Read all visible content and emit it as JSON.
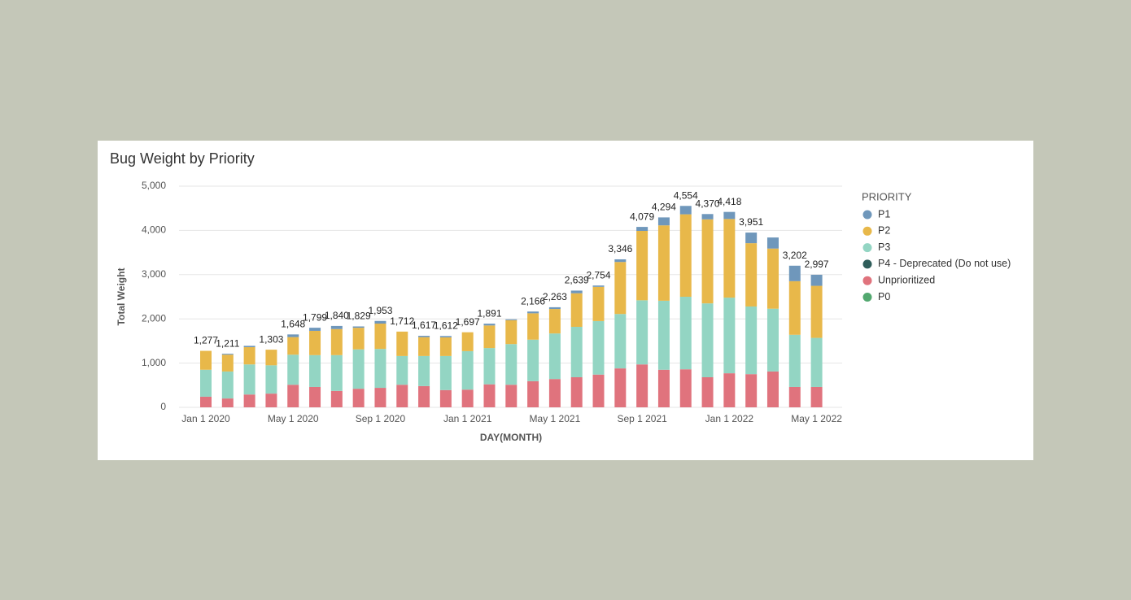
{
  "chart_data": {
    "type": "stacked_bar",
    "title": "Bug Weight by Priority",
    "y_label": "Total Weight",
    "x_label": "DAY(MONTH)",
    "legend_title": "PRIORITY",
    "legend_position": "right",
    "grid": true,
    "categories": [
      "Jan 1 2020",
      null,
      null,
      null,
      "May 1 2020",
      null,
      null,
      null,
      "Sep 1 2020",
      null,
      null,
      null,
      "Jan 1 2021",
      null,
      null,
      null,
      "May 1 2021",
      null,
      null,
      null,
      "Sep 1 2021",
      null,
      null,
      null,
      "Jan 1 2022",
      null,
      null,
      null,
      "May 1 2022"
    ],
    "ylim": [
      0,
      5000
    ],
    "yticks": [
      0,
      {
        "value": 1000,
        "label": "1,000"
      },
      {
        "value": 2000,
        "label": "2,000"
      },
      {
        "value": 3000,
        "label": "3,000"
      },
      {
        "value": 4000,
        "label": "4,000"
      },
      {
        "value": 5000,
        "label": "5,000"
      }
    ],
    "series": [
      {
        "name": "P1",
        "color": "#6f97bb",
        "values": [
          0,
          20,
          30,
          0,
          60,
          70,
          70,
          30,
          60,
          0,
          30,
          30,
          0,
          40,
          20,
          40,
          40,
          60,
          30,
          60,
          90,
          180,
          190,
          120,
          160,
          240,
          250,
          350,
          250
        ]
      },
      {
        "name": "P2",
        "color": "#e8b84a",
        "values": [
          427,
          381,
          390,
          353,
          398,
          549,
          590,
          489,
          573,
          552,
          427,
          422,
          427,
          511,
          540,
          596,
          553,
          759,
          774,
          1176,
          1569,
          1704,
          1864,
          1900,
          1778,
          1431,
          1360,
          1212,
          1177
        ]
      },
      {
        "name": "P3",
        "color": "#93d5c3",
        "values": [
          610,
          610,
          680,
          640,
          680,
          720,
          810,
          890,
          880,
          650,
          680,
          770,
          870,
          820,
          920,
          940,
          1030,
          1140,
          1210,
          1230,
          1450,
          1560,
          1640,
          1670,
          1710,
          1530,
          1420,
          1180,
          1110
        ]
      },
      {
        "name": "P4 - Deprecated (Do not use)",
        "color": "#2f5d5a",
        "values": [
          0,
          0,
          0,
          0,
          0,
          0,
          0,
          0,
          0,
          0,
          0,
          0,
          0,
          0,
          0,
          0,
          0,
          0,
          0,
          0,
          0,
          0,
          0,
          0,
          0,
          0,
          0,
          0,
          0
        ]
      },
      {
        "name": "Unprioritized",
        "color": "#e0737d",
        "values": [
          240,
          200,
          290,
          310,
          510,
          460,
          370,
          420,
          440,
          510,
          480,
          390,
          400,
          520,
          510,
          590,
          640,
          680,
          740,
          880,
          970,
          850,
          860,
          680,
          770,
          750,
          810,
          460,
          460
        ]
      },
      {
        "name": "P0",
        "color": "#52a86f",
        "values": [
          0,
          0,
          0,
          0,
          0,
          0,
          0,
          0,
          0,
          0,
          0,
          0,
          0,
          0,
          0,
          0,
          0,
          0,
          0,
          0,
          0,
          0,
          0,
          0,
          0,
          0,
          0,
          0,
          0
        ]
      }
    ],
    "totals": [
      1277,
      1211,
      null,
      1303,
      1648,
      1799,
      1840,
      1829,
      1953,
      1712,
      1617,
      1612,
      1697,
      1891,
      null,
      2166,
      2263,
      2639,
      2754,
      3346,
      4079,
      4294,
      4554,
      4370,
      4418,
      3951,
      null,
      3202,
      2997
    ],
    "total_labels": [
      "1,277",
      "1,211",
      null,
      "1,303",
      "1,648",
      "1,799",
      "1,840",
      "1,829",
      "1,953",
      "1,712",
      "1,617",
      "1,612",
      "1,697",
      "1,891",
      null,
      "2,166",
      "2,263",
      "2,639",
      "2,754",
      "3,346",
      "4,079",
      "4,294",
      "4,554",
      "4,370",
      "4,418",
      "3,951",
      null,
      "3,202",
      "2,997"
    ]
  }
}
